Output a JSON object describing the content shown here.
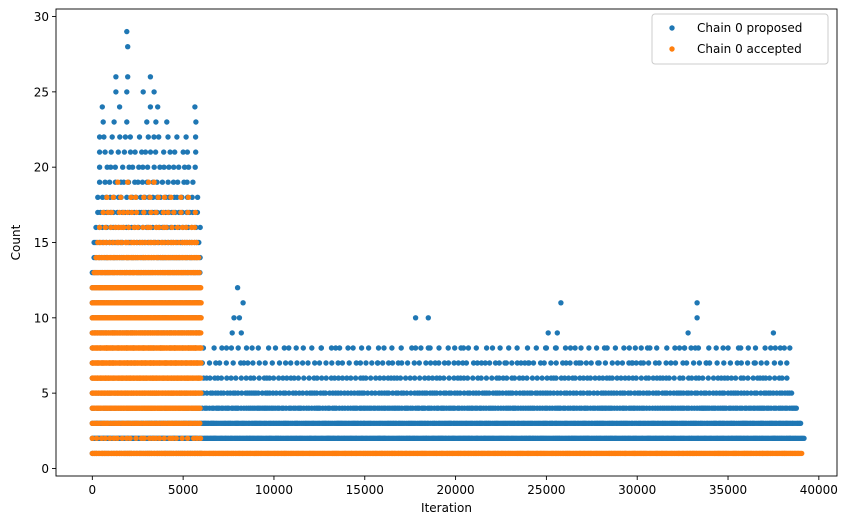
{
  "chart_data": {
    "type": "scatter",
    "xlabel": "Iteration",
    "ylabel": "Count",
    "xlim": [
      -2000,
      41000
    ],
    "ylim": [
      -0.5,
      30.5
    ],
    "xticks": [
      0,
      5000,
      10000,
      15000,
      20000,
      25000,
      30000,
      35000,
      40000
    ],
    "yticks": [
      0,
      5,
      10,
      15,
      20,
      25,
      30
    ],
    "grid": false,
    "legend_position": "top-right",
    "series": [
      {
        "name": "Chain 0 proposed",
        "color": "#1f77b4",
        "bands": [
          {
            "y": 1,
            "x_start": 0,
            "x_end": 6100,
            "step": 120
          },
          {
            "y": 2,
            "x_start": 0,
            "x_end": 39200,
            "step": 60
          },
          {
            "y": 3,
            "x_start": 0,
            "x_end": 39000,
            "step": 80
          },
          {
            "y": 4,
            "x_start": 0,
            "x_end": 38800,
            "step": 120
          },
          {
            "y": 5,
            "x_start": 0,
            "x_end": 38600,
            "step": 160
          },
          {
            "y": 6,
            "x_start": 0,
            "x_end": 38400,
            "step": 220
          },
          {
            "y": 7,
            "x_start": 0,
            "x_end": 38500,
            "step": 300
          },
          {
            "y": 8,
            "x_start": 0,
            "x_end": 38000,
            "step": 420
          },
          {
            "y": 9,
            "x_start": 0,
            "x_end": 6000,
            "step": 90
          },
          {
            "y": 10,
            "x_start": 0,
            "x_end": 6000,
            "step": 90
          },
          {
            "y": 11,
            "x_start": 0,
            "x_end": 6000,
            "step": 90
          },
          {
            "y": 12,
            "x_start": 0,
            "x_end": 6000,
            "step": 100
          },
          {
            "y": 13,
            "x_start": 0,
            "x_end": 6000,
            "step": 110
          },
          {
            "y": 14,
            "x_start": 100,
            "x_end": 6000,
            "step": 130
          },
          {
            "y": 15,
            "x_start": 100,
            "x_end": 6000,
            "step": 150
          },
          {
            "y": 16,
            "x_start": 200,
            "x_end": 6000,
            "step": 170
          },
          {
            "y": 17,
            "x_start": 300,
            "x_end": 5900,
            "step": 200
          },
          {
            "y": 18,
            "x_start": 300,
            "x_end": 5900,
            "step": 230
          },
          {
            "y": 19,
            "x_start": 400,
            "x_end": 5800,
            "step": 260
          },
          {
            "y": 20,
            "x_start": 400,
            "x_end": 5800,
            "step": 300
          },
          {
            "y": 21,
            "x_start": 400,
            "x_end": 5800,
            "step": 340
          },
          {
            "y": 22,
            "x_start": 400,
            "x_end": 5800,
            "step": 380
          }
        ],
        "points": [
          [
            1900,
            29
          ],
          [
            1950,
            28
          ],
          [
            1300,
            26
          ],
          [
            1950,
            26
          ],
          [
            3200,
            26
          ],
          [
            1300,
            25
          ],
          [
            1900,
            25
          ],
          [
            2800,
            25
          ],
          [
            3400,
            25
          ],
          [
            550,
            24
          ],
          [
            1500,
            24
          ],
          [
            3200,
            24
          ],
          [
            3600,
            24
          ],
          [
            5650,
            24
          ],
          [
            600,
            23
          ],
          [
            1200,
            23
          ],
          [
            1900,
            23
          ],
          [
            3000,
            23
          ],
          [
            3500,
            23
          ],
          [
            4100,
            23
          ],
          [
            5700,
            23
          ],
          [
            8000,
            12
          ],
          [
            8300,
            11
          ],
          [
            7800,
            10
          ],
          [
            8100,
            10
          ],
          [
            7700,
            9
          ],
          [
            8200,
            9
          ],
          [
            12600,
            8
          ],
          [
            13400,
            8
          ],
          [
            17800,
            8
          ],
          [
            18500,
            8
          ],
          [
            20300,
            8
          ],
          [
            25000,
            8
          ],
          [
            25500,
            8
          ],
          [
            28200,
            8
          ],
          [
            30700,
            8
          ],
          [
            32600,
            8
          ],
          [
            33200,
            8
          ],
          [
            35700,
            8
          ],
          [
            38100,
            8
          ],
          [
            38400,
            8
          ],
          [
            17800,
            10
          ],
          [
            18500,
            10
          ],
          [
            25100,
            9
          ],
          [
            25600,
            9
          ],
          [
            32800,
            9
          ],
          [
            33300,
            10
          ],
          [
            37500,
            9
          ],
          [
            25800,
            11
          ],
          [
            33300,
            11
          ],
          [
            15700,
            7
          ],
          [
            22800,
            7
          ],
          [
            24000,
            7
          ],
          [
            26800,
            7
          ],
          [
            27900,
            7
          ],
          [
            29700,
            7
          ],
          [
            30200,
            7
          ],
          [
            33800,
            7
          ],
          [
            36500,
            7
          ]
        ]
      },
      {
        "name": "Chain 0 accepted",
        "color": "#ff7f0e",
        "bands": [
          {
            "y": 1,
            "x_start": 0,
            "x_end": 39100,
            "step": 45
          },
          {
            "y": 2,
            "x_start": 0,
            "x_end": 6000,
            "step": 240
          },
          {
            "y": 3,
            "x_start": 0,
            "x_end": 6000,
            "step": 110
          },
          {
            "y": 4,
            "x_start": 0,
            "x_end": 6000,
            "step": 70
          },
          {
            "y": 5,
            "x_start": 0,
            "x_end": 6000,
            "step": 50
          },
          {
            "y": 6,
            "x_start": 0,
            "x_end": 6000,
            "step": 40
          },
          {
            "y": 7,
            "x_start": 0,
            "x_end": 6000,
            "step": 40
          },
          {
            "y": 8,
            "x_start": 0,
            "x_end": 6000,
            "step": 40
          },
          {
            "y": 9,
            "x_start": 0,
            "x_end": 6000,
            "step": 40
          },
          {
            "y": 10,
            "x_start": 0,
            "x_end": 6000,
            "step": 40
          },
          {
            "y": 11,
            "x_start": 0,
            "x_end": 6000,
            "step": 45
          },
          {
            "y": 12,
            "x_start": 0,
            "x_end": 6000,
            "step": 55
          },
          {
            "y": 13,
            "x_start": 100,
            "x_end": 5900,
            "step": 75
          },
          {
            "y": 14,
            "x_start": 200,
            "x_end": 5900,
            "step": 110
          },
          {
            "y": 15,
            "x_start": 300,
            "x_end": 5800,
            "step": 160
          },
          {
            "y": 16,
            "x_start": 400,
            "x_end": 5800,
            "step": 230
          },
          {
            "y": 17,
            "x_start": 600,
            "x_end": 5700,
            "step": 330
          },
          {
            "y": 18,
            "x_start": 800,
            "x_end": 5600,
            "step": 420
          }
        ],
        "points": [
          [
            1400,
            19
          ],
          [
            1950,
            19
          ],
          [
            3100,
            19
          ],
          [
            3400,
            19
          ]
        ]
      }
    ]
  }
}
